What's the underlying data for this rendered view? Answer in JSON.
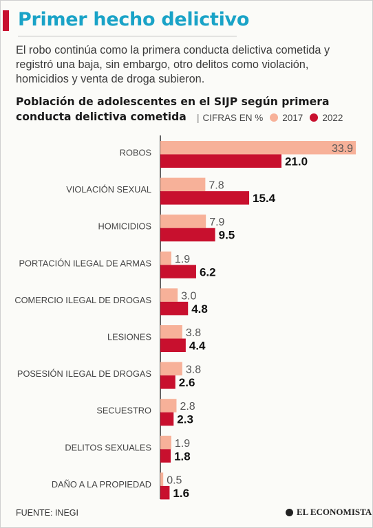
{
  "header": {
    "title": "Primer hecho delictivo",
    "subtitle": "El robo continúa como la primera conducta delictiva cometida y registró una baja, sin embargo, otro delitos como violación, homicidios y venta de droga subieron."
  },
  "chart_header": {
    "title": "Población de adolescentes en el SIJP según primera conducta delictiva cometida",
    "separator": "|",
    "unit": "CIFRAS EN %"
  },
  "colors": {
    "series_2017": "#f7b199",
    "series_2022": "#c8102e",
    "title": "#1aa3c7",
    "accent": "#c8102e"
  },
  "chart_data": {
    "type": "bar",
    "orientation": "horizontal",
    "title": "Población de adolescentes en el SIJP según primera conducta delictiva cometida",
    "unit": "CIFRAS EN %",
    "categories": [
      "ROBOS",
      "VIOLACIÓN SEXUAL",
      "HOMICIDIOS",
      "PORTACIÓN ILEGAL DE ARMAS",
      "COMERCIO ILEGAL DE DROGAS",
      "LESIONES",
      "POSESIÓN ILEGAL DE DROGAS",
      "SECUESTRO",
      "DELITOS SEXUALES",
      "DAÑO A LA PROPIEDAD"
    ],
    "series": [
      {
        "name": "2017",
        "color": "#f7b199",
        "values": [
          33.9,
          7.8,
          7.9,
          1.9,
          3.0,
          3.8,
          3.8,
          2.8,
          1.9,
          0.5
        ],
        "labels": [
          "33.9",
          "7.8",
          "7.9",
          "1.9",
          "3.0",
          "3.8",
          "3.8",
          "2.8",
          "1.9",
          "0.5"
        ]
      },
      {
        "name": "2022",
        "color": "#c8102e",
        "values": [
          21.0,
          15.4,
          9.5,
          6.2,
          4.8,
          4.4,
          2.6,
          2.3,
          1.8,
          1.6
        ],
        "labels": [
          "21.0",
          "15.4",
          "9.5",
          "6.2",
          "4.8",
          "4.4",
          "2.6",
          "2.3",
          "1.8",
          "1.6"
        ]
      }
    ],
    "legend_position": "top-right",
    "grid": false
  },
  "footer": {
    "source": "FUENTE: INEGI",
    "brand": "EL ECONOMISTA"
  }
}
